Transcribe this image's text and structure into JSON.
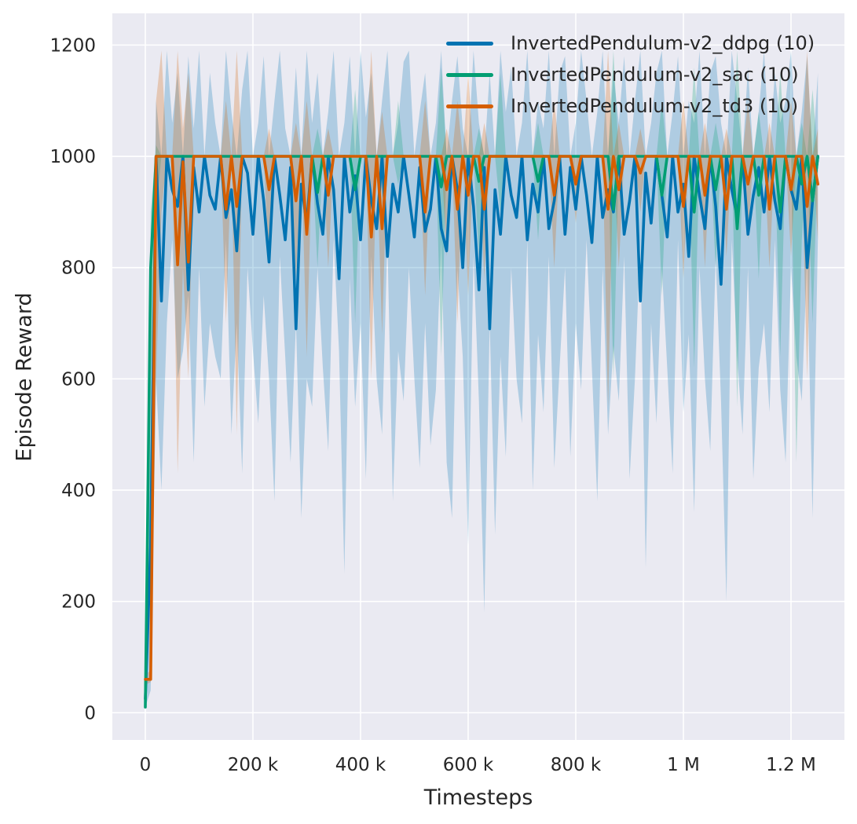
{
  "chart_data": {
    "type": "line",
    "title": "",
    "xlabel": "Timesteps",
    "ylabel": "Episode Reward",
    "grid": true,
    "legend_position": "upper right",
    "xlim": [
      -61300,
      1299300
    ],
    "ylim": [
      -49,
      1257
    ],
    "x_ticks": [
      {
        "value": 0,
        "label": "0"
      },
      {
        "value": 200000,
        "label": "200 k"
      },
      {
        "value": 400000,
        "label": "400 k"
      },
      {
        "value": 600000,
        "label": "600 k"
      },
      {
        "value": 800000,
        "label": "800 k"
      },
      {
        "value": 1000000,
        "label": "1 M"
      },
      {
        "value": 1200000,
        "label": "1.2 M"
      }
    ],
    "y_ticks": [
      {
        "value": 0,
        "label": "0"
      },
      {
        "value": 200,
        "label": "200"
      },
      {
        "value": 400,
        "label": "400"
      },
      {
        "value": 600,
        "label": "600"
      },
      {
        "value": 800,
        "label": "800"
      },
      {
        "value": 1000,
        "label": "1000"
      },
      {
        "value": 1200,
        "label": "1200"
      }
    ],
    "style": {
      "plot_background": "#eaeaf2",
      "grid_color": "#ffffff",
      "text_color": "#262626",
      "band_alpha": 0.25,
      "line_width": 3.6
    },
    "x_start": 0,
    "x_step": 10000,
    "series": [
      {
        "name": "InvertedPendulum-v2_ddpg (10)",
        "color": "#0173b2",
        "mean": [
          25,
          300,
          1000,
          740,
          1000,
          940,
          910,
          1000,
          760,
          980,
          900,
          1000,
          930,
          905,
          1000,
          890,
          940,
          830,
          1000,
          970,
          860,
          1000,
          920,
          810,
          1000,
          930,
          850,
          980,
          690,
          950,
          880,
          1000,
          915,
          860,
          1000,
          940,
          780,
          1000,
          900,
          965,
          850,
          1000,
          920,
          870,
          1000,
          820,
          950,
          900,
          1000,
          930,
          855,
          980,
          865,
          905,
          1000,
          870,
          830,
          1000,
          940,
          800,
          1000,
          910,
          760,
          980,
          690,
          940,
          860,
          1000,
          930,
          890,
          1000,
          850,
          950,
          900,
          1000,
          870,
          920,
          1000,
          860,
          980,
          905,
          1000,
          930,
          845,
          1000,
          890,
          940,
          900,
          1000,
          860,
          920,
          1000,
          740,
          970,
          880,
          1000,
          930,
          855,
          1000,
          900,
          950,
          820,
          1000,
          930,
          870,
          1000,
          910,
          770,
          1000,
          940,
          890,
          1000,
          860,
          930,
          980,
          900,
          1000,
          920,
          870,
          1000,
          940,
          905,
          1000,
          800,
          920,
          1000
        ],
        "hi": [
          60,
          500,
          1100,
          1000,
          1190,
          1060,
          1150,
          1000,
          1180,
          1050,
          1190,
          1000,
          1150,
          1060,
          1000,
          1190,
          1080,
          1000,
          1120,
          1190,
          1000,
          1060,
          1180,
          1000,
          1100,
          1190,
          1050,
          1000,
          1160,
          1000,
          1190,
          1060,
          1150,
          1000,
          1080,
          1190,
          1000,
          1060,
          1180,
          1000,
          1190,
          1070,
          1150,
          1000,
          1100,
          1190,
          1000,
          1060,
          1170,
          1190,
          1000,
          1080,
          1150,
          1000,
          1060,
          1190,
          1000,
          1100,
          1180,
          1050,
          1000,
          1190,
          1060,
          1000,
          1150,
          1000,
          1190,
          1080,
          1160,
          1000,
          1060,
          1190,
          1000,
          1100,
          1050,
          1190,
          1000,
          1150,
          1180,
          1000,
          1060,
          1190,
          1100,
          1000,
          1080,
          1190,
          1000,
          1150,
          1060,
          1180,
          1000,
          1100,
          1190,
          1000,
          1060,
          1150,
          1190,
          1000,
          1080,
          1180,
          1000,
          1100,
          1060,
          1190,
          1000,
          1150,
          1180,
          1060,
          1000,
          1190,
          1100,
          1000,
          1160,
          1000,
          1080,
          1190,
          1000,
          1150,
          1060,
          1100,
          1190,
          1000,
          1080,
          1180,
          1000,
          1150
        ],
        "lo": [
          10,
          40,
          600,
          400,
          700,
          850,
          600,
          650,
          750,
          450,
          800,
          550,
          700,
          640,
          600,
          850,
          500,
          700,
          430,
          800,
          650,
          520,
          750,
          600,
          380,
          820,
          640,
          450,
          700,
          350,
          600,
          550,
          800,
          620,
          470,
          850,
          650,
          250,
          780,
          550,
          700,
          420,
          820,
          600,
          500,
          850,
          380,
          650,
          560,
          800,
          600,
          440,
          700,
          480,
          580,
          850,
          450,
          350,
          800,
          640,
          300,
          820,
          560,
          180,
          700,
          320,
          640,
          460,
          800,
          600,
          520,
          850,
          400,
          680,
          540,
          820,
          440,
          620,
          800,
          460,
          700,
          580,
          850,
          620,
          380,
          800,
          500,
          660,
          560,
          820,
          420,
          600,
          850,
          260,
          700,
          520,
          800,
          620,
          430,
          850,
          540,
          680,
          360,
          800,
          600,
          470,
          820,
          560,
          200,
          850,
          640,
          500,
          800,
          420,
          620,
          700,
          540,
          850,
          580,
          450,
          800,
          640,
          560,
          820,
          350,
          850
        ]
      },
      {
        "name": "InvertedPendulum-v2_sac (10)",
        "color": "#029e73",
        "mean": [
          10,
          800,
          1000,
          1000,
          1000,
          1000,
          1000,
          1000,
          1000,
          1000,
          1000,
          1000,
          1000,
          1000,
          1000,
          1000,
          1000,
          1000,
          1000,
          1000,
          1000,
          1000,
          1000,
          1000,
          1000,
          1000,
          1000,
          1000,
          1000,
          1000,
          1000,
          1000,
          935,
          1000,
          1000,
          1000,
          1000,
          1000,
          1000,
          940,
          1000,
          1000,
          1000,
          1000,
          1000,
          1000,
          1000,
          1000,
          1000,
          1000,
          1000,
          1000,
          1000,
          1000,
          1000,
          945,
          1000,
          1000,
          1000,
          1000,
          1000,
          1000,
          955,
          1000,
          1000,
          1000,
          1000,
          1000,
          1000,
          1000,
          1000,
          1000,
          1000,
          955,
          1000,
          1000,
          1000,
          1000,
          1000,
          1000,
          1000,
          1000,
          1000,
          1000,
          1000,
          1000,
          1000,
          905,
          1000,
          1000,
          1000,
          1000,
          1000,
          1000,
          1000,
          1000,
          930,
          1000,
          1000,
          1000,
          1000,
          1000,
          900,
          1000,
          1000,
          1000,
          940,
          1000,
          1000,
          1000,
          870,
          1000,
          1000,
          1000,
          930,
          1000,
          1000,
          1000,
          900,
          1000,
          1000,
          1000,
          950,
          1000,
          920,
          1000
        ],
        "hi": [
          15,
          900,
          1020,
          1000,
          1000,
          1000,
          1000,
          1000,
          1000,
          1000,
          1000,
          1000,
          1000,
          1000,
          1000,
          1000,
          1000,
          1000,
          1000,
          1000,
          1000,
          1000,
          1000,
          1000,
          1000,
          1000,
          1000,
          1000,
          1000,
          1000,
          1000,
          1000,
          1050,
          1000,
          1000,
          1000,
          1000,
          1000,
          1000,
          1120,
          1000,
          1000,
          1000,
          1000,
          1000,
          1000,
          1000,
          1100,
          1000,
          1000,
          1000,
          1000,
          1000,
          1000,
          1000,
          1160,
          1000,
          1000,
          1000,
          1000,
          1000,
          1000,
          1050,
          1000,
          1000,
          1000,
          1150,
          1000,
          1000,
          1000,
          1000,
          1000,
          1000,
          1060,
          1000,
          1000,
          1000,
          1000,
          1000,
          1000,
          1000,
          1000,
          1000,
          1000,
          1000,
          1000,
          1000,
          1190,
          1000,
          1000,
          1000,
          1000,
          1000,
          1000,
          1000,
          1000,
          1100,
          1000,
          1000,
          1000,
          1000,
          1000,
          1160,
          1000,
          1000,
          1000,
          1060,
          1000,
          1000,
          1000,
          1190,
          1000,
          1000,
          1000,
          1080,
          1000,
          1000,
          1000,
          1150,
          1000,
          1000,
          1000,
          1060,
          1000,
          1120,
          1000
        ],
        "lo": [
          5,
          300,
          900,
          1000,
          1000,
          1000,
          1000,
          1000,
          1000,
          1000,
          1000,
          1000,
          1000,
          1000,
          1000,
          1000,
          1000,
          1000,
          1000,
          1000,
          1000,
          1000,
          1000,
          1000,
          1000,
          1000,
          1000,
          1000,
          1000,
          1000,
          1000,
          1000,
          800,
          1000,
          1000,
          1000,
          1000,
          1000,
          1000,
          700,
          1000,
          1000,
          1000,
          1000,
          1000,
          1000,
          1000,
          950,
          1000,
          1000,
          1000,
          1000,
          1000,
          1000,
          1000,
          640,
          1000,
          1000,
          1000,
          1000,
          1000,
          1000,
          820,
          1000,
          1000,
          1000,
          900,
          1000,
          1000,
          1000,
          1000,
          1000,
          1000,
          850,
          1000,
          1000,
          1000,
          1000,
          1000,
          1000,
          1000,
          1000,
          1000,
          1000,
          1000,
          1000,
          1000,
          600,
          1000,
          1000,
          1000,
          1000,
          1000,
          1000,
          1000,
          1000,
          750,
          1000,
          1000,
          1000,
          1000,
          1000,
          620,
          1000,
          1000,
          1000,
          800,
          1000,
          1000,
          1000,
          550,
          1000,
          1000,
          1000,
          780,
          1000,
          1000,
          1000,
          640,
          1000,
          1000,
          450,
          850,
          1000,
          700,
          1000
        ]
      },
      {
        "name": "InvertedPendulum-v2_td3 (10)",
        "color": "#d55e00",
        "mean": [
          60,
          60,
          1000,
          1000,
          1000,
          1000,
          805,
          990,
          810,
          1000,
          1000,
          1000,
          1000,
          1000,
          1000,
          905,
          1000,
          910,
          1000,
          1000,
          1000,
          1000,
          1000,
          940,
          1000,
          1000,
          1000,
          1000,
          920,
          1000,
          860,
          1000,
          1000,
          1000,
          930,
          1000,
          1000,
          1000,
          1000,
          1000,
          1000,
          1000,
          855,
          1000,
          870,
          1000,
          1000,
          1000,
          1000,
          1000,
          1000,
          1000,
          900,
          1000,
          1000,
          1000,
          940,
          1000,
          905,
          1000,
          930,
          1000,
          1000,
          905,
          1000,
          1000,
          1000,
          1000,
          1000,
          1000,
          1000,
          1000,
          1000,
          1000,
          1000,
          1000,
          930,
          1000,
          1000,
          1000,
          950,
          1000,
          1000,
          1000,
          1000,
          1000,
          905,
          1000,
          940,
          1000,
          1000,
          1000,
          970,
          1000,
          1000,
          1000,
          1000,
          1000,
          1000,
          1000,
          910,
          1000,
          1000,
          1000,
          930,
          1000,
          1000,
          1000,
          905,
          1000,
          1000,
          1000,
          950,
          1000,
          1000,
          1000,
          905,
          1000,
          1000,
          1000,
          940,
          1000,
          1000,
          910,
          1000,
          950
        ],
        "hi": [
          70,
          75,
          1100,
          1190,
          1000,
          1000,
          1190,
          1050,
          1150,
          1000,
          1000,
          1000,
          1000,
          1000,
          1000,
          1100,
          1000,
          1190,
          1000,
          1000,
          1000,
          1000,
          1000,
          1050,
          1000,
          1000,
          1000,
          1000,
          1060,
          1000,
          1100,
          1000,
          1000,
          1000,
          1050,
          1000,
          1000,
          1000,
          1000,
          1000,
          1000,
          1000,
          1190,
          1000,
          1080,
          1000,
          1000,
          1000,
          1000,
          1000,
          1000,
          1000,
          1100,
          1000,
          1000,
          1000,
          1050,
          1000,
          1100,
          1000,
          1150,
          1000,
          1000,
          1060,
          1000,
          1000,
          1000,
          1000,
          1000,
          1000,
          1000,
          1000,
          1000,
          1000,
          1000,
          1000,
          1100,
          1000,
          1000,
          1000,
          1000,
          1000,
          1000,
          1000,
          1000,
          1000,
          1190,
          1000,
          1060,
          1000,
          1000,
          1000,
          1050,
          1000,
          1000,
          1000,
          1000,
          1000,
          1000,
          1000,
          1100,
          1000,
          1000,
          1000,
          1060,
          1000,
          1000,
          1000,
          1050,
          1000,
          1000,
          1000,
          1100,
          1000,
          1000,
          1000,
          1060,
          1000,
          1000,
          1000,
          1100,
          1000,
          1000,
          1190,
          1000,
          1050
        ],
        "lo": [
          50,
          55,
          600,
          900,
          1000,
          1000,
          430,
          800,
          600,
          1000,
          1000,
          1000,
          1000,
          1000,
          1000,
          700,
          1000,
          500,
          1000,
          1000,
          1000,
          1000,
          1000,
          800,
          1000,
          1000,
          1000,
          1000,
          780,
          1000,
          640,
          1000,
          1000,
          1000,
          800,
          1000,
          1000,
          1000,
          1000,
          1000,
          1000,
          1000,
          600,
          1000,
          680,
          1000,
          1000,
          1000,
          1000,
          1000,
          1000,
          1000,
          750,
          1000,
          1000,
          1000,
          820,
          1000,
          700,
          1000,
          750,
          1000,
          1000,
          780,
          1000,
          1000,
          1000,
          1000,
          1000,
          1000,
          1000,
          1000,
          1000,
          1000,
          1000,
          1000,
          800,
          1000,
          1000,
          1000,
          880,
          1000,
          1000,
          1000,
          1000,
          1000,
          550,
          1000,
          800,
          1000,
          1000,
          1000,
          900,
          1000,
          1000,
          1000,
          1000,
          1000,
          1000,
          1000,
          780,
          1000,
          1000,
          1000,
          800,
          1000,
          1000,
          1000,
          820,
          1000,
          1000,
          1000,
          850,
          1000,
          1000,
          1000,
          800,
          1000,
          1000,
          1000,
          820,
          1000,
          1000,
          600,
          1000,
          850
        ]
      }
    ]
  }
}
